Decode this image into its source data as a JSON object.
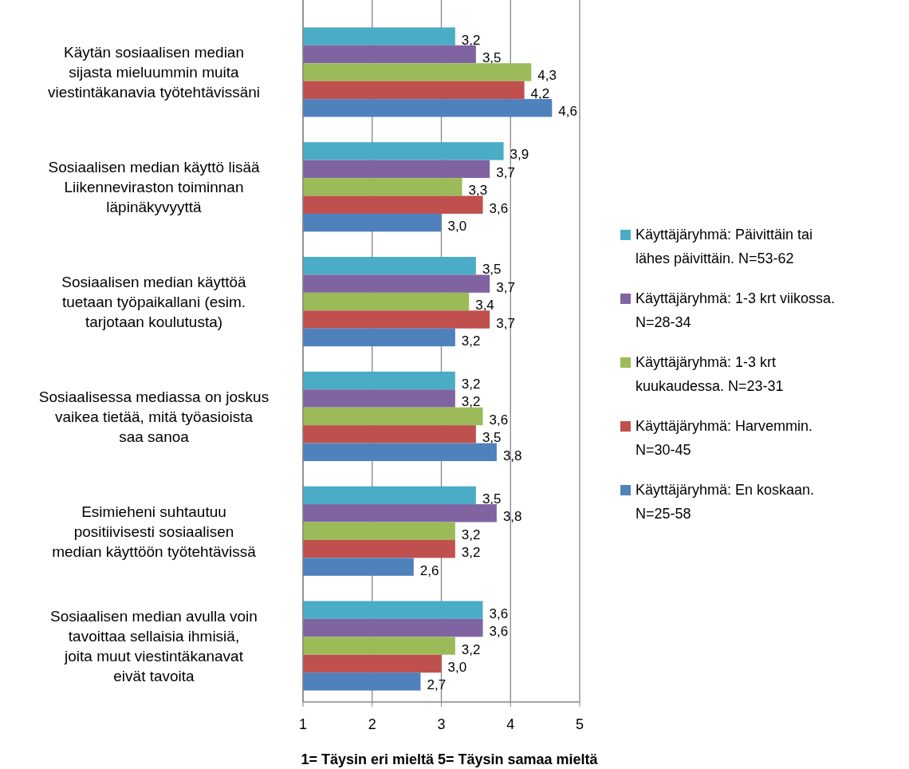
{
  "chart_data": {
    "type": "bar",
    "orientation": "horizontal",
    "xlabel": "1= Täysin eri mieltä   5= Täysin samaa mieltä",
    "categories": [
      "Käytän sosiaalisen median sijasta mieluummin muita viestintäkanavia työtehtävissäni",
      "Sosiaalisen median käyttö lisää Liikenneviraston toiminnan läpinäkyvyyttä",
      "Sosiaalisen median käyttöä tuetaan työpaikallani (esim. tarjotaan koulutusta)",
      "Sosiaalisessa mediassa on joskus vaikea tietää, mitä työasioista saa sanoa",
      "Esimieheni suhtautuu positiivisesti sosiaalisen median käyttöön työtehtävissä",
      "Sosiaalisen median avulla voin tavoittaa sellaisia ihmisiä, joita muut viestintäkanavat eivät tavoita"
    ],
    "series": [
      {
        "name": "Käyttäjäryhmä: Päivittäin tai lähes päivittäin. N=53-62",
        "color": "#4bacc6",
        "values": [
          3.2,
          3.9,
          3.5,
          3.2,
          3.5,
          3.6
        ],
        "value_labels": [
          "3,2",
          "3,9",
          "3,5",
          "3,2",
          "3,5",
          "3,6"
        ]
      },
      {
        "name": "Käyttäjäryhmä: 1-3 krt viikossa. N=28-34",
        "color": "#8064a2",
        "values": [
          3.5,
          3.7,
          3.7,
          3.2,
          3.8,
          3.6
        ],
        "value_labels": [
          "3,5",
          "3,7",
          "3,7",
          "3,2",
          "3,8",
          "3,6"
        ]
      },
      {
        "name": "Käyttäjäryhmä: 1-3 krt kuukaudessa. N=23-31",
        "color": "#9bbb59",
        "values": [
          4.3,
          3.3,
          3.4,
          3.6,
          3.2,
          3.2
        ],
        "value_labels": [
          "4,3",
          "3,3",
          "3,4",
          "3,6",
          "3,2",
          "3,2"
        ]
      },
      {
        "name": "Käyttäjäryhmä: Harvemmin. N=30-45",
        "color": "#c0504d",
        "values": [
          4.2,
          3.6,
          3.7,
          3.5,
          3.2,
          3.0
        ],
        "value_labels": [
          "4,2",
          "3,6",
          "3,7",
          "3,5",
          "3,2",
          "3,0"
        ]
      },
      {
        "name": "Käyttäjäryhmä: En koskaan. N=25-58",
        "color": "#4f81bd",
        "values": [
          4.6,
          3.0,
          3.2,
          3.8,
          2.6,
          2.7
        ],
        "value_labels": [
          "4,6",
          "3,0",
          "3,2",
          "3,8",
          "2,6",
          "2,7"
        ]
      }
    ],
    "xlim": [
      1,
      5
    ],
    "xticks": [
      1,
      2,
      3,
      4,
      5
    ],
    "grid": "x",
    "legend": "right"
  }
}
